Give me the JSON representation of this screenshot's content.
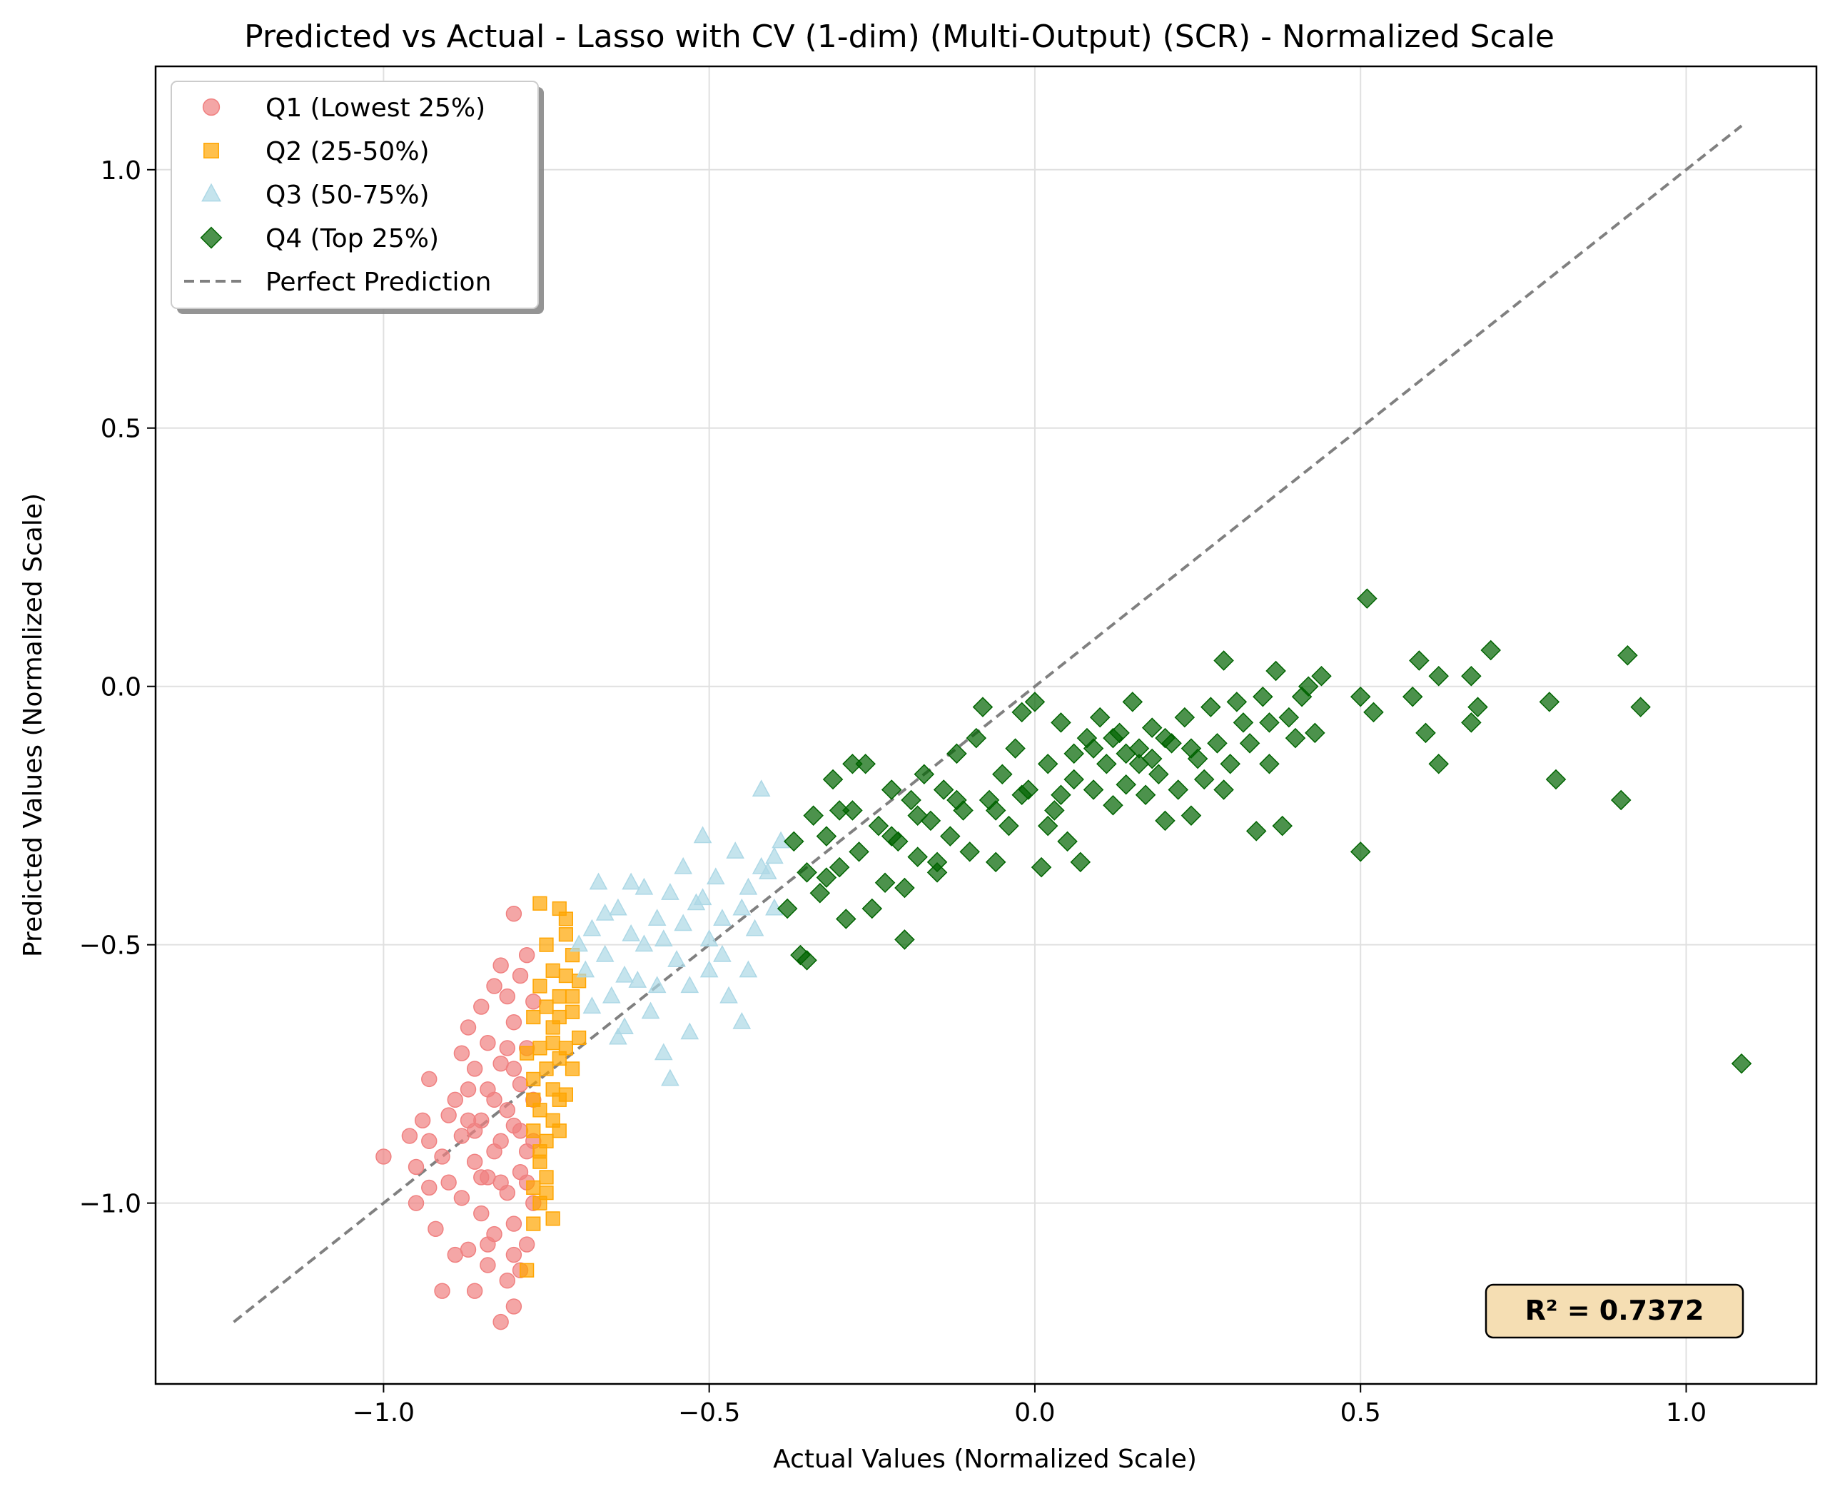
{
  "chart_data": {
    "type": "scatter",
    "title": "Predicted vs Actual - Lasso with CV (1-dim) (Multi-Output) (SCR) - Normalized Scale",
    "xlabel": "Actual Values (Normalized Scale)",
    "ylabel": "Predicted Values (Normalized Scale)",
    "xlim": [
      -1.35,
      1.2
    ],
    "ylim": [
      -1.35,
      1.2
    ],
    "x_ticks": [
      -1.0,
      -0.5,
      0.0,
      0.5,
      1.0
    ],
    "x_tick_labels": [
      "−1.0",
      "−0.5",
      "0.0",
      "0.5",
      "1.0"
    ],
    "y_ticks": [
      -1.0,
      -0.5,
      0.0,
      0.5,
      1.0
    ],
    "y_tick_labels": [
      "−1.0",
      "−0.5",
      "0.0",
      "0.5",
      "1.0"
    ],
    "grid": true,
    "legend_position": "top-left",
    "reference_line": {
      "name": "Perfect Prediction",
      "x": [
        -1.23,
        1.085
      ],
      "y": [
        -1.23,
        1.085
      ],
      "style": "dashed",
      "color": "#808080"
    },
    "annotation": {
      "text": "R² = 0.7372",
      "position": "bottom-right"
    },
    "series": [
      {
        "name": "Q1 (Lowest 25%)",
        "marker": "circle",
        "color": "#f08080",
        "points": [
          [
            -1.0,
            -0.91
          ],
          [
            -0.96,
            -0.87
          ],
          [
            -0.95,
            -0.93
          ],
          [
            -0.94,
            -0.84
          ],
          [
            -0.93,
            -0.88
          ],
          [
            -0.95,
            -1.0
          ],
          [
            -0.93,
            -0.76
          ],
          [
            -0.92,
            -1.05
          ],
          [
            -0.91,
            -1.17
          ],
          [
            -0.9,
            -0.83
          ],
          [
            -0.9,
            -0.96
          ],
          [
            -0.89,
            -1.1
          ],
          [
            -0.88,
            -0.71
          ],
          [
            -0.88,
            -0.87
          ],
          [
            -0.88,
            -0.99
          ],
          [
            -0.87,
            -0.66
          ],
          [
            -0.87,
            -0.78
          ],
          [
            -0.87,
            -1.09
          ],
          [
            -0.86,
            -0.74
          ],
          [
            -0.86,
            -0.92
          ],
          [
            -0.86,
            -1.17
          ],
          [
            -0.85,
            -0.62
          ],
          [
            -0.85,
            -0.84
          ],
          [
            -0.85,
            -1.02
          ],
          [
            -0.84,
            -0.69
          ],
          [
            -0.84,
            -0.95
          ],
          [
            -0.84,
            -1.12
          ],
          [
            -0.83,
            -0.58
          ],
          [
            -0.83,
            -0.8
          ],
          [
            -0.83,
            -1.06
          ],
          [
            -0.82,
            -0.54
          ],
          [
            -0.82,
            -0.73
          ],
          [
            -0.82,
            -0.88
          ],
          [
            -0.82,
            -1.23
          ],
          [
            -0.81,
            -0.6
          ],
          [
            -0.81,
            -0.82
          ],
          [
            -0.81,
            -0.98
          ],
          [
            -0.81,
            -1.15
          ],
          [
            -0.8,
            -0.44
          ],
          [
            -0.8,
            -0.65
          ],
          [
            -0.8,
            -0.85
          ],
          [
            -0.8,
            -1.04
          ],
          [
            -0.8,
            -1.2
          ],
          [
            -0.79,
            -0.56
          ],
          [
            -0.79,
            -0.77
          ],
          [
            -0.79,
            -0.94
          ],
          [
            -0.79,
            -1.13
          ],
          [
            -0.78,
            -0.52
          ],
          [
            -0.78,
            -0.7
          ],
          [
            -0.78,
            -0.9
          ],
          [
            -0.78,
            -1.08
          ],
          [
            -0.77,
            -0.61
          ],
          [
            -0.77,
            -0.8
          ],
          [
            -0.77,
            -1.0
          ],
          [
            -0.89,
            -0.8
          ],
          [
            -0.86,
            -0.86
          ],
          [
            -0.84,
            -0.78
          ],
          [
            -0.83,
            -0.9
          ],
          [
            -0.82,
            -0.96
          ],
          [
            -0.8,
            -0.74
          ],
          [
            -0.79,
            -0.86
          ],
          [
            -0.78,
            -0.96
          ],
          [
            -0.81,
            -0.7
          ],
          [
            -0.85,
            -0.95
          ],
          [
            -0.87,
            -0.84
          ],
          [
            -0.91,
            -0.91
          ],
          [
            -0.93,
            -0.97
          ],
          [
            -0.84,
            -1.08
          ],
          [
            -0.8,
            -1.1
          ],
          [
            -0.77,
            -0.88
          ]
        ]
      },
      {
        "name": "Q2 (25-50%)",
        "marker": "square",
        "color": "#ffa500",
        "points": [
          [
            -0.76,
            -0.42
          ],
          [
            -0.73,
            -0.43
          ],
          [
            -0.72,
            -0.48
          ],
          [
            -0.75,
            -0.5
          ],
          [
            -0.74,
            -0.55
          ],
          [
            -0.71,
            -0.52
          ],
          [
            -0.76,
            -0.58
          ],
          [
            -0.73,
            -0.6
          ],
          [
            -0.7,
            -0.57
          ],
          [
            -0.77,
            -0.64
          ],
          [
            -0.74,
            -0.66
          ],
          [
            -0.71,
            -0.63
          ],
          [
            -0.76,
            -0.7
          ],
          [
            -0.73,
            -0.72
          ],
          [
            -0.7,
            -0.68
          ],
          [
            -0.77,
            -0.76
          ],
          [
            -0.74,
            -0.78
          ],
          [
            -0.71,
            -0.74
          ],
          [
            -0.76,
            -0.82
          ],
          [
            -0.73,
            -0.8
          ],
          [
            -0.72,
            -0.79
          ],
          [
            -0.77,
            -0.86
          ],
          [
            -0.75,
            -0.88
          ],
          [
            -0.74,
            -0.84
          ],
          [
            -0.76,
            -0.92
          ],
          [
            -0.75,
            -0.95
          ],
          [
            -0.77,
            -0.97
          ],
          [
            -0.76,
            -1.0
          ],
          [
            -0.74,
            -1.03
          ],
          [
            -0.77,
            -1.04
          ],
          [
            -0.78,
            -1.13
          ],
          [
            -0.72,
            -0.45
          ],
          [
            -0.75,
            -0.62
          ],
          [
            -0.72,
            -0.7
          ],
          [
            -0.75,
            -0.74
          ],
          [
            -0.73,
            -0.86
          ],
          [
            -0.76,
            -0.9
          ],
          [
            -0.74,
            -0.69
          ],
          [
            -0.72,
            -0.56
          ],
          [
            -0.77,
            -0.8
          ],
          [
            -0.75,
            -0.98
          ],
          [
            -0.78,
            -0.71
          ],
          [
            -0.73,
            -0.64
          ],
          [
            -0.71,
            -0.6
          ]
        ]
      },
      {
        "name": "Q3 (50-75%)",
        "marker": "triangle",
        "color": "#add8e6",
        "points": [
          [
            -0.7,
            -0.5
          ],
          [
            -0.69,
            -0.55
          ],
          [
            -0.68,
            -0.47
          ],
          [
            -0.67,
            -0.38
          ],
          [
            -0.66,
            -0.52
          ],
          [
            -0.65,
            -0.6
          ],
          [
            -0.64,
            -0.43
          ],
          [
            -0.63,
            -0.66
          ],
          [
            -0.62,
            -0.48
          ],
          [
            -0.61,
            -0.57
          ],
          [
            -0.6,
            -0.39
          ],
          [
            -0.59,
            -0.63
          ],
          [
            -0.58,
            -0.45
          ],
          [
            -0.57,
            -0.71
          ],
          [
            -0.56,
            -0.76
          ],
          [
            -0.55,
            -0.53
          ],
          [
            -0.54,
            -0.35
          ],
          [
            -0.53,
            -0.58
          ],
          [
            -0.52,
            -0.42
          ],
          [
            -0.51,
            -0.29
          ],
          [
            -0.5,
            -0.55
          ],
          [
            -0.49,
            -0.37
          ],
          [
            -0.48,
            -0.45
          ],
          [
            -0.47,
            -0.6
          ],
          [
            -0.46,
            -0.32
          ],
          [
            -0.45,
            -0.65
          ],
          [
            -0.44,
            -0.39
          ],
          [
            -0.43,
            -0.47
          ],
          [
            -0.42,
            -0.2
          ],
          [
            -0.41,
            -0.36
          ],
          [
            -0.4,
            -0.43
          ],
          [
            -0.39,
            -0.3
          ],
          [
            -0.66,
            -0.44
          ],
          [
            -0.63,
            -0.56
          ],
          [
            -0.6,
            -0.5
          ],
          [
            -0.57,
            -0.49
          ],
          [
            -0.54,
            -0.46
          ],
          [
            -0.51,
            -0.41
          ],
          [
            -0.48,
            -0.52
          ],
          [
            -0.45,
            -0.43
          ],
          [
            -0.42,
            -0.35
          ],
          [
            -0.4,
            -0.33
          ],
          [
            -0.68,
            -0.62
          ],
          [
            -0.62,
            -0.38
          ],
          [
            -0.56,
            -0.4
          ],
          [
            -0.5,
            -0.49
          ],
          [
            -0.44,
            -0.55
          ],
          [
            -0.58,
            -0.58
          ],
          [
            -0.53,
            -0.67
          ],
          [
            -0.64,
            -0.68
          ]
        ]
      },
      {
        "name": "Q4 (Top 25%)",
        "marker": "diamond",
        "color": "#006400",
        "points": [
          [
            -0.38,
            -0.43
          ],
          [
            -0.37,
            -0.3
          ],
          [
            -0.36,
            -0.52
          ],
          [
            -0.35,
            -0.36
          ],
          [
            -0.34,
            -0.25
          ],
          [
            -0.33,
            -0.4
          ],
          [
            -0.32,
            -0.29
          ],
          [
            -0.31,
            -0.18
          ],
          [
            -0.3,
            -0.35
          ],
          [
            -0.29,
            -0.45
          ],
          [
            -0.28,
            -0.24
          ],
          [
            -0.27,
            -0.32
          ],
          [
            -0.26,
            -0.15
          ],
          [
            -0.25,
            -0.43
          ],
          [
            -0.24,
            -0.27
          ],
          [
            -0.23,
            -0.38
          ],
          [
            -0.22,
            -0.2
          ],
          [
            -0.21,
            -0.3
          ],
          [
            -0.2,
            -0.49
          ],
          [
            -0.19,
            -0.22
          ],
          [
            -0.18,
            -0.33
          ],
          [
            -0.17,
            -0.17
          ],
          [
            -0.16,
            -0.26
          ],
          [
            -0.15,
            -0.36
          ],
          [
            -0.14,
            -0.2
          ],
          [
            -0.13,
            -0.29
          ],
          [
            -0.12,
            -0.13
          ],
          [
            -0.11,
            -0.24
          ],
          [
            -0.1,
            -0.32
          ],
          [
            -0.09,
            -0.1
          ],
          [
            -0.08,
            -0.04
          ],
          [
            -0.07,
            -0.22
          ],
          [
            -0.06,
            -0.34
          ],
          [
            -0.05,
            -0.17
          ],
          [
            -0.04,
            -0.27
          ],
          [
            -0.03,
            -0.12
          ],
          [
            -0.02,
            -0.05
          ],
          [
            -0.01,
            -0.2
          ],
          [
            0.0,
            -0.03
          ],
          [
            0.01,
            -0.35
          ],
          [
            0.02,
            -0.15
          ],
          [
            0.03,
            -0.24
          ],
          [
            0.04,
            -0.07
          ],
          [
            0.05,
            -0.3
          ],
          [
            0.06,
            -0.18
          ],
          [
            0.07,
            -0.34
          ],
          [
            0.08,
            -0.1
          ],
          [
            0.09,
            -0.2
          ],
          [
            0.1,
            -0.06
          ],
          [
            0.11,
            -0.15
          ],
          [
            0.12,
            -0.23
          ],
          [
            0.13,
            -0.09
          ],
          [
            0.14,
            -0.19
          ],
          [
            0.15,
            -0.03
          ],
          [
            0.16,
            -0.12
          ],
          [
            0.17,
            -0.21
          ],
          [
            0.18,
            -0.08
          ],
          [
            0.19,
            -0.17
          ],
          [
            0.2,
            -0.26
          ],
          [
            0.21,
            -0.11
          ],
          [
            0.22,
            -0.2
          ],
          [
            0.23,
            -0.06
          ],
          [
            0.24,
            -0.25
          ],
          [
            0.25,
            -0.14
          ],
          [
            0.27,
            -0.04
          ],
          [
            0.28,
            -0.11
          ],
          [
            0.29,
            0.05
          ],
          [
            0.29,
            -0.2
          ],
          [
            0.31,
            -0.03
          ],
          [
            0.33,
            -0.11
          ],
          [
            0.34,
            -0.28
          ],
          [
            0.35,
            -0.02
          ],
          [
            0.36,
            -0.15
          ],
          [
            0.37,
            0.03
          ],
          [
            0.38,
            -0.27
          ],
          [
            0.39,
            -0.06
          ],
          [
            0.4,
            -0.1
          ],
          [
            0.42,
            0.0
          ],
          [
            0.43,
            -0.09
          ],
          [
            0.44,
            0.02
          ],
          [
            0.5,
            -0.32
          ],
          [
            0.5,
            -0.02
          ],
          [
            0.51,
            0.17
          ],
          [
            0.52,
            -0.05
          ],
          [
            0.58,
            -0.02
          ],
          [
            0.59,
            0.05
          ],
          [
            0.6,
            -0.09
          ],
          [
            0.62,
            0.02
          ],
          [
            0.62,
            -0.15
          ],
          [
            0.67,
            0.02
          ],
          [
            0.67,
            -0.07
          ],
          [
            0.68,
            -0.04
          ],
          [
            0.7,
            0.07
          ],
          [
            0.79,
            -0.03
          ],
          [
            0.8,
            -0.18
          ],
          [
            0.9,
            -0.22
          ],
          [
            0.91,
            0.06
          ],
          [
            0.93,
            -0.04
          ],
          [
            1.085,
            -0.73
          ],
          [
            -0.35,
            -0.53
          ],
          [
            -0.28,
            -0.15
          ],
          [
            -0.2,
            -0.39
          ],
          [
            -0.15,
            -0.34
          ],
          [
            -0.06,
            -0.24
          ],
          [
            0.02,
            -0.27
          ],
          [
            0.06,
            -0.13
          ],
          [
            0.12,
            -0.1
          ],
          [
            0.16,
            -0.15
          ],
          [
            0.2,
            -0.1
          ],
          [
            0.26,
            -0.18
          ],
          [
            0.32,
            -0.07
          ],
          [
            0.41,
            -0.02
          ],
          [
            -0.32,
            -0.37
          ],
          [
            -0.3,
            -0.24
          ],
          [
            -0.22,
            -0.29
          ],
          [
            -0.18,
            -0.25
          ],
          [
            -0.12,
            -0.22
          ],
          [
            -0.02,
            -0.21
          ],
          [
            0.04,
            -0.21
          ],
          [
            0.09,
            -0.12
          ],
          [
            0.14,
            -0.13
          ],
          [
            0.18,
            -0.14
          ],
          [
            0.24,
            -0.12
          ],
          [
            0.3,
            -0.15
          ],
          [
            0.36,
            -0.07
          ]
        ]
      }
    ]
  }
}
